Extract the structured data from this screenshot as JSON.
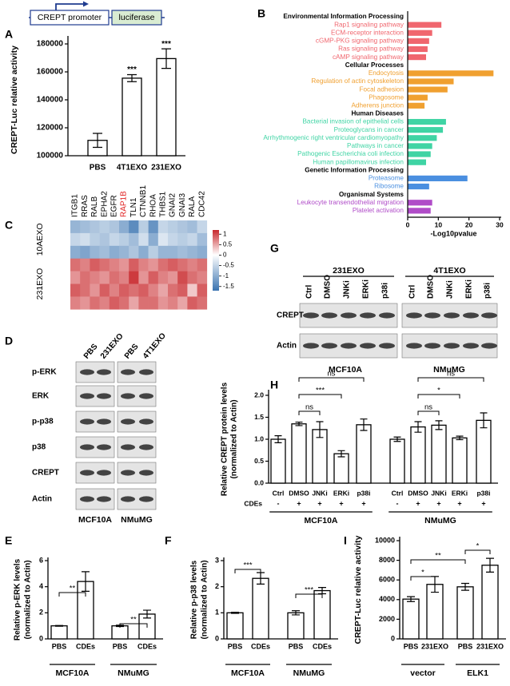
{
  "chart_data": [
    {
      "type": "bar",
      "panel": "A",
      "ylabel": "CREPT-Luc relative activity",
      "categories": [
        "PBS",
        "4T1EXO",
        "231EXO"
      ],
      "values": [
        111000,
        155500,
        169500
      ],
      "errors": [
        5000,
        2500,
        7000
      ],
      "annotations": [
        null,
        "***",
        "***"
      ],
      "ylim": [
        100000,
        180000
      ],
      "yticks": [
        100000,
        120000,
        140000,
        160000,
        180000
      ],
      "color": "#ffffff"
    },
    {
      "type": "barh",
      "panel": "B",
      "xlabel": "-Log10pvalue",
      "categories": [
        "Environmental Information Processing",
        "Rap1 signaling pathway",
        "ECM-receptor interaction",
        "cGMP-PKG signaling pathway",
        "Ras signaling pathway",
        "cAMP signaling pathway",
        "Cellular Processes",
        "Endocytosis",
        "Regulation of actin cytoskeleton",
        "Focal adhesion",
        "Phagosome",
        "Adherens junction",
        "Human Diseases",
        "Bacterial invasion of epithelial cells",
        "Proteoglycans in cancer",
        "Arrhythmogenic right ventricular cardiomyopathy",
        "Pathways in cancer",
        "Pathogenic Escherichia coli infection",
        "Human papillomavirus infection",
        "Genetic Information Processing",
        "Proteasome",
        "Ribosome",
        "Organismal Systems",
        "Leukocyte transendothelial migration",
        "Platelet activation"
      ],
      "values": [
        null,
        11,
        8,
        7,
        6.5,
        6,
        null,
        28,
        15,
        13,
        6.5,
        5.5,
        null,
        12.5,
        11.5,
        9.5,
        8,
        7.5,
        6,
        null,
        19.5,
        7,
        null,
        8,
        7.5
      ],
      "colors": [
        "#000000",
        "#f0666e",
        "#f0666e",
        "#f0666e",
        "#f0666e",
        "#f0666e",
        "#000000",
        "#f0a030",
        "#f0a030",
        "#f0a030",
        "#f0a030",
        "#f0a030",
        "#000000",
        "#3fd4a4",
        "#3fd4a4",
        "#3fd4a4",
        "#3fd4a4",
        "#3fd4a4",
        "#3fd4a4",
        "#000000",
        "#4a8fe0",
        "#4a8fe0",
        "#000000",
        "#b04cc8",
        "#b04cc8"
      ],
      "xlim": [
        0,
        30
      ],
      "xticks": [
        0,
        10,
        20,
        30
      ]
    },
    {
      "type": "heatmap",
      "panel": "C",
      "columns": [
        "ITGB1",
        "RRAS",
        "RALB",
        "EPHA2",
        "EGFR",
        "RAP1B",
        "TLN1",
        "CTNNB1",
        "RHOA",
        "THBS1",
        "GNAI2",
        "GNAI3",
        "RALA",
        "CDC42"
      ],
      "column_colors": [
        "#000000",
        "#000000",
        "#000000",
        "#000000",
        "#000000",
        "#e02020",
        "#000000",
        "#000000",
        "#000000",
        "#000000",
        "#000000",
        "#000000",
        "#000000",
        "#000000"
      ],
      "groups": [
        {
          "name": "10AEXO",
          "values": [
            [
              -0.9,
              -0.8,
              -0.7,
              -0.6,
              -0.7,
              -1.0,
              -1.4,
              -0.6,
              -1.3,
              -0.5,
              -0.6,
              -0.7,
              -0.8,
              -0.5
            ],
            [
              -0.5,
              -0.4,
              -0.6,
              -0.7,
              -0.5,
              -0.6,
              -0.8,
              -0.4,
              -1.0,
              -0.3,
              -0.5,
              -0.6,
              -0.5,
              -0.8
            ],
            [
              -1.0,
              -1.1,
              -0.9,
              -0.8,
              -1.0,
              -0.9,
              -0.7,
              -1.0,
              -0.6,
              -0.9,
              -0.9,
              -0.8,
              -0.9,
              -1.0
            ]
          ]
        },
        {
          "name": "231EXO",
          "values": [
            [
              0.8,
              0.7,
              0.9,
              0.8,
              0.7,
              0.6,
              0.9,
              0.7,
              0.6,
              0.8,
              0.9,
              0.8,
              0.7,
              0.8
            ],
            [
              0.6,
              0.8,
              0.7,
              0.6,
              0.8,
              0.7,
              1.1,
              0.6,
              0.9,
              0.7,
              0.6,
              1.0,
              0.8,
              0.7
            ],
            [
              0.9,
              0.8,
              0.6,
              0.9,
              0.7,
              0.9,
              0.8,
              0.9,
              0.7,
              0.5,
              0.8,
              0.9,
              0.3,
              0.9
            ],
            [
              0.7,
              0.6,
              0.8,
              0.7,
              0.9,
              0.8,
              0.5,
              0.8,
              0.8,
              0.6,
              0.7,
              0.5,
              0.9,
              0.8
            ]
          ]
        }
      ],
      "zlim": [
        -1.7,
        1.2
      ],
      "colorbar_ticks": [
        1,
        0.5,
        0,
        -0.5,
        -1,
        -1.5
      ],
      "colors": [
        "#3a73b0",
        "#ffffff",
        "#c8282c"
      ]
    },
    {
      "type": "bar",
      "panel": "H",
      "ylabel": [
        "Relative CREPT protein levels",
        "(normalized to Actin)"
      ],
      "categories": [
        "Ctrl",
        "DMSO",
        "JNKi",
        "ERKi",
        "p38i",
        "Ctrl",
        "DMSO",
        "JNKi",
        "ERKi",
        "p38i"
      ],
      "values": [
        1.0,
        1.35,
        1.22,
        0.67,
        1.33,
        1.0,
        1.28,
        1.32,
        1.03,
        1.43
      ],
      "errors": [
        0.08,
        0.04,
        0.18,
        0.07,
        0.13,
        0.05,
        0.12,
        0.1,
        0.04,
        0.17
      ],
      "treatment_label": "CDEs",
      "treatment": [
        "-",
        "+",
        "+",
        "+",
        "+",
        "-",
        "+",
        "+",
        "+",
        "+"
      ],
      "groups": [
        "MCF10A",
        "NMuMG"
      ],
      "annotations": [
        "ns",
        "***",
        "ns",
        "ns",
        "*",
        "ns"
      ],
      "ylim": [
        0,
        2
      ],
      "yticks": [
        {
          "value": 0,
          "label": "0.0"
        },
        0.5,
        {
          "value": 1,
          "label": "1.0"
        },
        1.5,
        {
          "value": 2,
          "label": "2.0"
        }
      ],
      "color": "#ffffff"
    },
    {
      "type": "bar",
      "panel": "E",
      "ylabel": [
        "Relative p-ERK levels",
        "(normalized to Actin)"
      ],
      "categories": [
        "PBS",
        "CDEs",
        "PBS",
        "CDEs"
      ],
      "values": [
        1.0,
        4.4,
        1.0,
        1.9
      ],
      "errors": [
        0.03,
        0.75,
        0.05,
        0.3
      ],
      "groups": [
        "MCF10A",
        "NMuMG"
      ],
      "annotations": [
        "**",
        "**"
      ],
      "ylim": [
        0,
        6
      ],
      "yticks": [
        0,
        2,
        4,
        6
      ],
      "color": "#ffffff"
    },
    {
      "type": "bar",
      "panel": "F",
      "ylabel": [
        "Relative p-p38 levels",
        "(normalized to Actin)"
      ],
      "categories": [
        "PBS",
        "CDEs",
        "PBS",
        "CDEs"
      ],
      "values": [
        1.0,
        2.32,
        1.0,
        1.85
      ],
      "errors": [
        0.02,
        0.22,
        0.08,
        0.12
      ],
      "groups": [
        "MCF10A",
        "NMuMG"
      ],
      "annotations": [
        "***",
        "***"
      ],
      "ylim": [
        0,
        3
      ],
      "yticks": [
        0,
        1,
        2,
        3
      ],
      "color": "#ffffff"
    },
    {
      "type": "bar",
      "panel": "I",
      "ylabel": "CREPT-Luc relative activity",
      "categories": [
        "PBS",
        "231EXO",
        "PBS",
        "231EXO"
      ],
      "values": [
        4050,
        5550,
        5300,
        7500
      ],
      "errors": [
        250,
        800,
        350,
        700
      ],
      "groups": [
        "vector",
        "ELK1"
      ],
      "annotations": [
        "*",
        "**",
        "*"
      ],
      "ylim": [
        0,
        10000
      ],
      "yticks": [
        0,
        2000,
        4000,
        6000,
        8000,
        10000
      ],
      "color": "#ffffff"
    }
  ],
  "diagram_a": {
    "promoter": "CREPT promoter",
    "reporter": "luciferase"
  },
  "blot_d": {
    "panel": "D",
    "lanes": [
      "PBS",
      "231EXO",
      "PBS",
      "4T1EXO"
    ],
    "rows": [
      "p-ERK",
      "ERK",
      "p-p38",
      "p38",
      "CREPT",
      "Actin"
    ],
    "cells": [
      "MCF10A",
      "NMuMG"
    ]
  },
  "blot_g": {
    "panel": "G",
    "conditions": [
      "231EXO",
      "4T1EXO"
    ],
    "lanes": [
      "Ctrl",
      "DMSO",
      "JNKi",
      "ERKi",
      "p38i",
      "Ctrl",
      "DMSO",
      "JNKi",
      "ERKi",
      "p38i"
    ],
    "rows": [
      "CREPT",
      "Actin"
    ],
    "cells": [
      "MCF10A",
      "NMuMG"
    ]
  }
}
